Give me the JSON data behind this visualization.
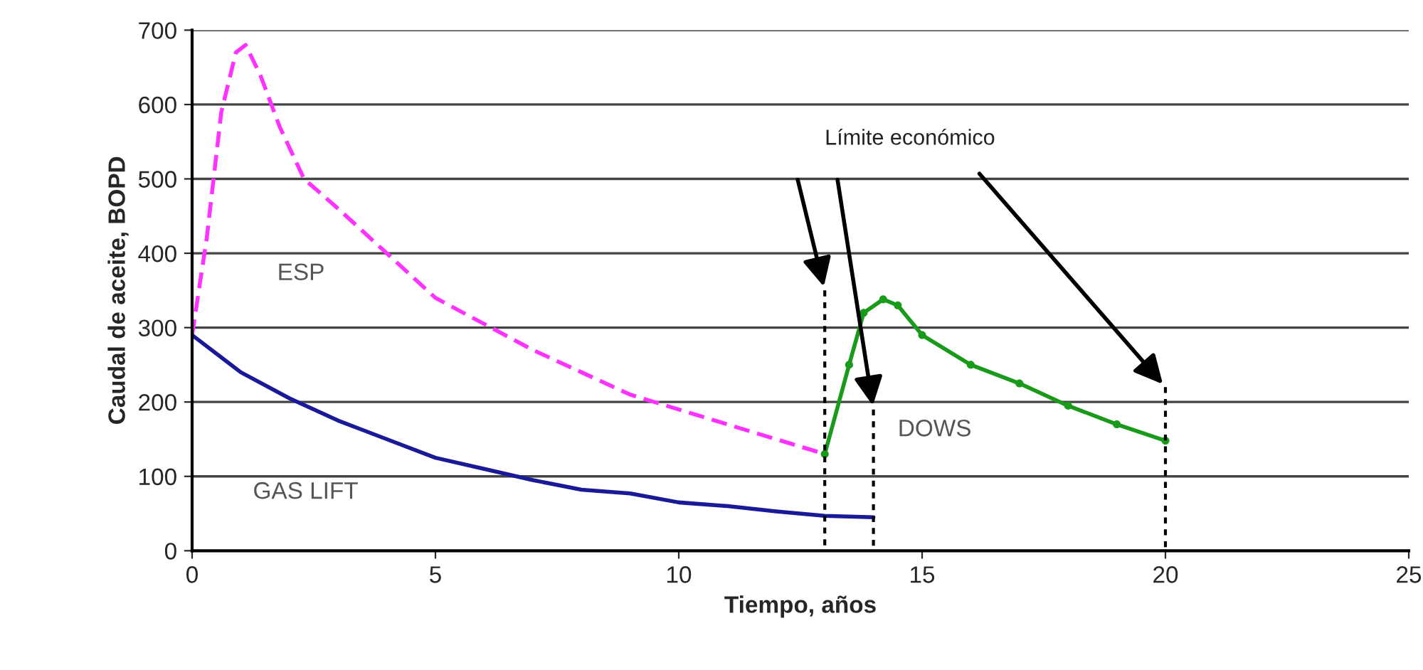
{
  "chart_data": {
    "type": "line",
    "xlabel": "Tiempo, años",
    "ylabel": "Caudal de aceite, BOPD",
    "xlim": [
      0,
      25
    ],
    "xticks": [
      0,
      5,
      10,
      15,
      20,
      25
    ],
    "ylim": [
      0,
      700
    ],
    "yticks": [
      0,
      100,
      200,
      300,
      400,
      500,
      600,
      700
    ],
    "grid": "y",
    "annotations": [
      "Límite económico"
    ],
    "series": [
      {
        "name": "ESP",
        "color": "#ff33ff",
        "line_style": "dashed",
        "marker": "none",
        "x": [
          0,
          0.3,
          0.6,
          0.9,
          1.1,
          1.4,
          1.8,
          2.3,
          3,
          4,
          5,
          6,
          7,
          8,
          9,
          10,
          11,
          12,
          13
        ],
        "values": [
          290,
          420,
          590,
          670,
          680,
          640,
          570,
          500,
          460,
          400,
          340,
          305,
          270,
          240,
          210,
          190,
          170,
          150,
          130
        ]
      },
      {
        "name": "GAS LIFT",
        "color": "#1a1a99",
        "line_style": "solid",
        "marker": "none",
        "x": [
          0,
          1,
          2,
          3,
          4,
          5,
          6,
          7,
          8,
          9,
          10,
          11,
          12,
          13,
          14
        ],
        "values": [
          290,
          240,
          205,
          175,
          150,
          125,
          110,
          95,
          82,
          77,
          65,
          60,
          53,
          47,
          45
        ]
      },
      {
        "name": "DOWS",
        "color": "#1a9a1a",
        "line_style": "solid",
        "marker": "circle",
        "x": [
          13,
          13.5,
          13.8,
          14.2,
          14.5,
          15,
          16,
          17,
          18,
          19,
          20
        ],
        "values": [
          130,
          250,
          320,
          338,
          330,
          290,
          250,
          225,
          195,
          170,
          148
        ]
      },
      {
        "color": "#000000",
        "line_style": "dotted",
        "marker": "none",
        "x": [
          13,
          13
        ],
        "values": [
          350,
          0
        ]
      },
      {
        "color": "#000000",
        "line_style": "dotted",
        "marker": "none",
        "x": [
          14,
          14
        ],
        "values": [
          190,
          0
        ]
      },
      {
        "color": "#000000",
        "line_style": "dotted",
        "marker": "none",
        "x": [
          20,
          20
        ],
        "values": [
          220,
          0
        ]
      }
    ]
  }
}
